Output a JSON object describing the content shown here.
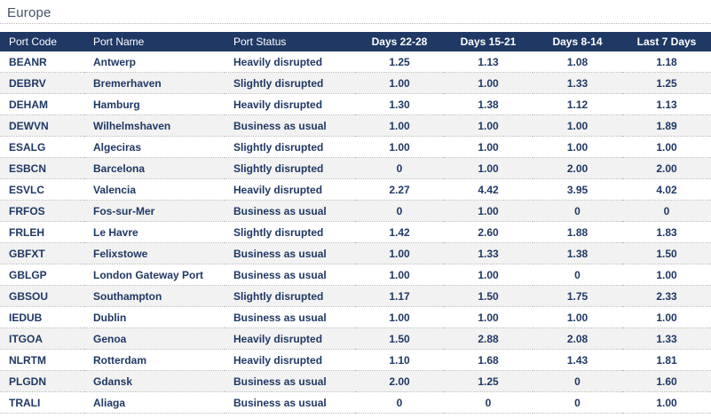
{
  "title": "Europe",
  "colors": {
    "header_bg": "#1f3864",
    "header_text": "#ffffff",
    "body_text": "#1f3864",
    "title_text": "#44546a",
    "alt_row_bg": "#f2f2f2",
    "separator": "#b8b8b8"
  },
  "table": {
    "columns": [
      {
        "key": "code",
        "label": "Port Code",
        "align": "left"
      },
      {
        "key": "name",
        "label": "Port Name",
        "align": "left"
      },
      {
        "key": "status",
        "label": "Port Status",
        "align": "left"
      },
      {
        "key": "d22",
        "label": "Days 22-28",
        "align": "center"
      },
      {
        "key": "d15",
        "label": "Days 15-21",
        "align": "center"
      },
      {
        "key": "d8",
        "label": "Days 8-14",
        "align": "center"
      },
      {
        "key": "last7",
        "label": "Last 7 Days",
        "align": "center"
      }
    ],
    "rows": [
      {
        "code": "BEANR",
        "name": "Antwerp",
        "status": "Heavily disrupted",
        "d22": "1.25",
        "d15": "1.13",
        "d8": "1.08",
        "last7": "1.18"
      },
      {
        "code": "DEBRV",
        "name": "Bremerhaven",
        "status": "Slightly disrupted",
        "d22": "1.00",
        "d15": "1.00",
        "d8": "1.33",
        "last7": "1.25"
      },
      {
        "code": "DEHAM",
        "name": "Hamburg",
        "status": "Heavily disrupted",
        "d22": "1.30",
        "d15": "1.38",
        "d8": "1.12",
        "last7": "1.13"
      },
      {
        "code": "DEWVN",
        "name": "Wilhelmshaven",
        "status": "Business as usual",
        "d22": "1.00",
        "d15": "1.00",
        "d8": "1.00",
        "last7": "1.89"
      },
      {
        "code": "ESALG",
        "name": "Algeciras",
        "status": "Slightly disrupted",
        "d22": "1.00",
        "d15": "1.00",
        "d8": "1.00",
        "last7": "1.00"
      },
      {
        "code": "ESBCN",
        "name": "Barcelona",
        "status": "Slightly disrupted",
        "d22": "0",
        "d15": "1.00",
        "d8": "2.00",
        "last7": "2.00"
      },
      {
        "code": "ESVLC",
        "name": "Valencia",
        "status": "Heavily disrupted",
        "d22": "2.27",
        "d15": "4.42",
        "d8": "3.95",
        "last7": "4.02"
      },
      {
        "code": "FRFOS",
        "name": "Fos-sur-Mer",
        "status": "Business as usual",
        "d22": "0",
        "d15": "1.00",
        "d8": "0",
        "last7": "0"
      },
      {
        "code": "FRLEH",
        "name": "Le Havre",
        "status": "Slightly disrupted",
        "d22": "1.42",
        "d15": "2.60",
        "d8": "1.88",
        "last7": "1.83"
      },
      {
        "code": "GBFXT",
        "name": "Felixstowe",
        "status": "Business as usual",
        "d22": "1.00",
        "d15": "1.33",
        "d8": "1.38",
        "last7": "1.50"
      },
      {
        "code": "GBLGP",
        "name": "London Gateway Port",
        "status": "Business as usual",
        "d22": "1.00",
        "d15": "1.00",
        "d8": "0",
        "last7": "1.00"
      },
      {
        "code": "GBSOU",
        "name": "Southampton",
        "status": "Slightly disrupted",
        "d22": "1.17",
        "d15": "1.50",
        "d8": "1.75",
        "last7": "2.33"
      },
      {
        "code": "IEDUB",
        "name": "Dublin",
        "status": "Business as usual",
        "d22": "1.00",
        "d15": "1.00",
        "d8": "1.00",
        "last7": "1.00"
      },
      {
        "code": "ITGOA",
        "name": "Genoa",
        "status": "Heavily disrupted",
        "d22": "1.50",
        "d15": "2.88",
        "d8": "2.08",
        "last7": "1.33"
      },
      {
        "code": "NLRTM",
        "name": "Rotterdam",
        "status": "Heavily disrupted",
        "d22": "1.10",
        "d15": "1.68",
        "d8": "1.43",
        "last7": "1.81"
      },
      {
        "code": "PLGDN",
        "name": "Gdansk",
        "status": "Business as usual",
        "d22": "2.00",
        "d15": "1.25",
        "d8": "0",
        "last7": "1.60"
      },
      {
        "code": "TRALI",
        "name": "Aliaga",
        "status": "Business as usual",
        "d22": "0",
        "d15": "0",
        "d8": "0",
        "last7": "1.00"
      }
    ]
  }
}
